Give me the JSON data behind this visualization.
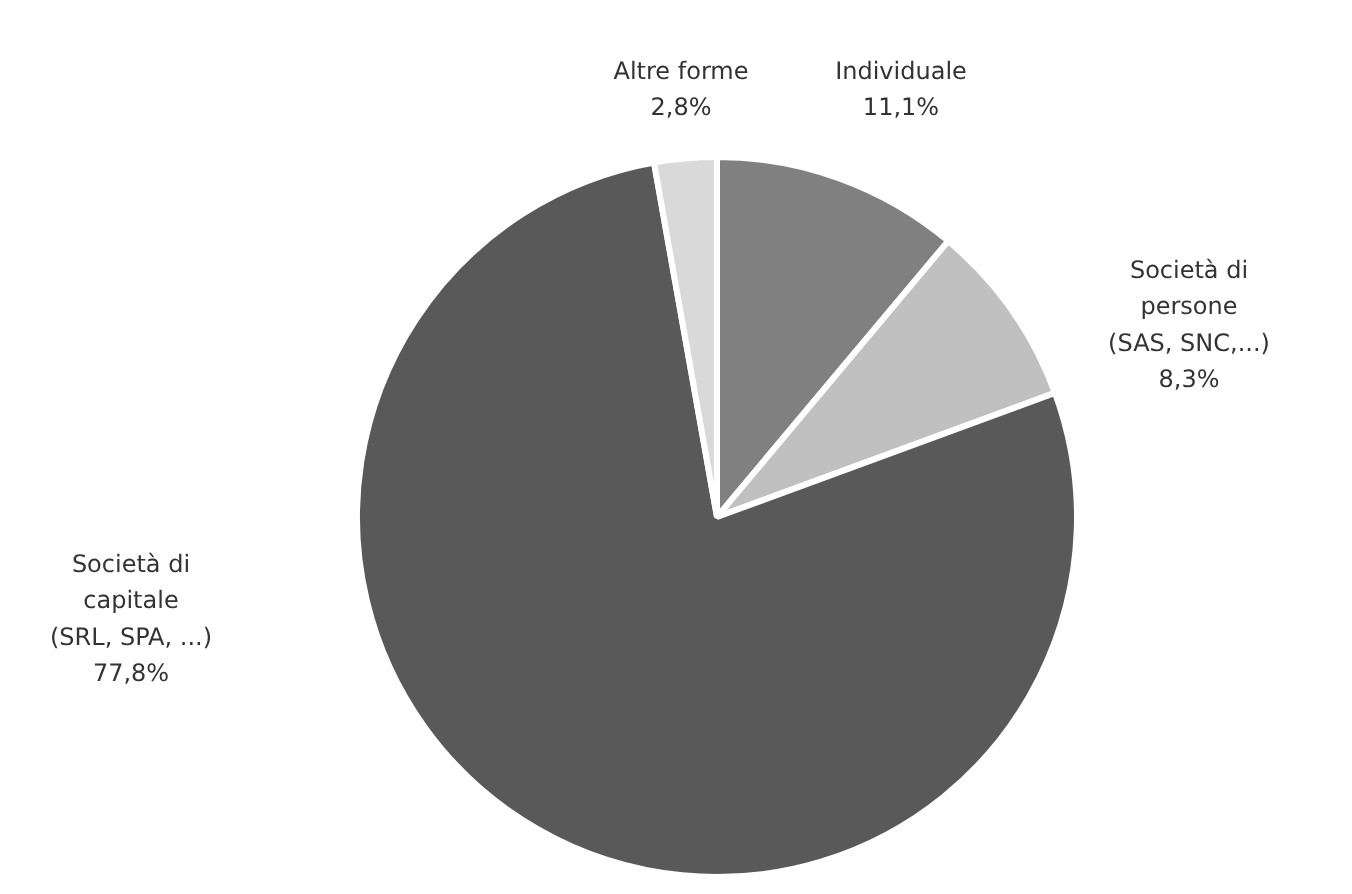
{
  "chart_data": {
    "type": "pie",
    "categories": [
      "Individuale",
      "Società di\npersone\n(SAS, SNC,...)",
      "Società di\ncapitale\n(SRL, SPA, ...)",
      "Altre forme"
    ],
    "values": [
      11.1,
      8.3,
      77.8,
      2.8
    ],
    "colors": [
      "#808080",
      "#c0c0c0",
      "#595959",
      "#d9d9d9"
    ],
    "value_labels": [
      "11,1%",
      "8,3%",
      "77,8%",
      "2,8%"
    ]
  }
}
